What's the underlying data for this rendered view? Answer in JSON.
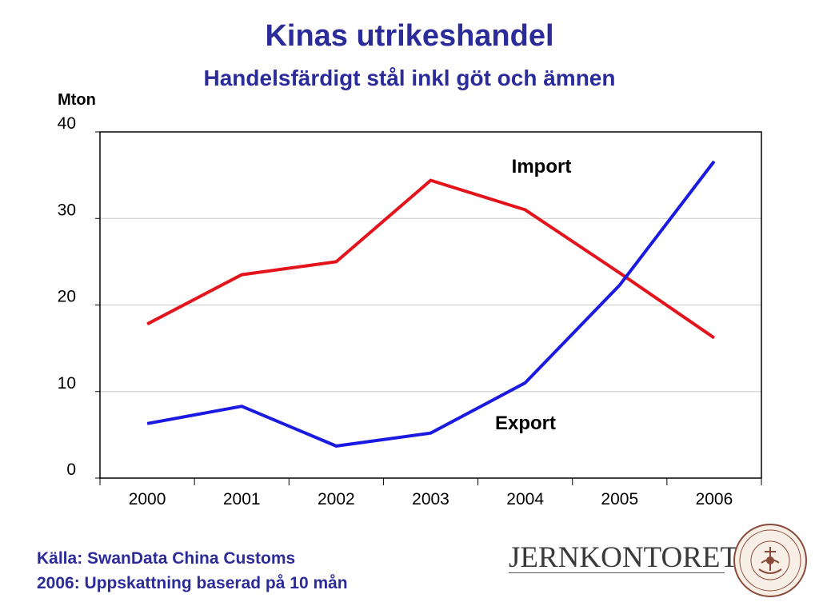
{
  "header": {
    "title": "Kinas utrikeshandel",
    "subtitle": "Handelsfärdigt stål inkl göt och ämnen"
  },
  "chart_data": {
    "type": "line",
    "title": "Kinas utrikeshandel",
    "subtitle": "Handelsfärdigt stål inkl göt och ämnen",
    "ylabel": "Mton",
    "xlabel": "",
    "categories": [
      "2000",
      "2001",
      "2002",
      "2003",
      "2004",
      "2005",
      "2006"
    ],
    "ylim": [
      0,
      40
    ],
    "yticks": [
      "0",
      "10",
      "20",
      "30",
      "40"
    ],
    "grid": true,
    "series": [
      {
        "name": "Import",
        "color": "#e3141c",
        "values": [
          17.8,
          23.5,
          25.0,
          34.4,
          31.0,
          23.7,
          16.2
        ]
      },
      {
        "name": "Export",
        "color": "#1a1ae0",
        "values": [
          6.3,
          8.3,
          3.7,
          5.2,
          11.0,
          22.3,
          36.6
        ]
      }
    ]
  },
  "footer": {
    "source_line1": "Källa: SwanData China Customs",
    "source_line2": "2006: Uppskattning baserad på 10 mån",
    "logo": "JERNKONTORET",
    "seal_text": "JERN CONTOIRETS SIGILL"
  }
}
